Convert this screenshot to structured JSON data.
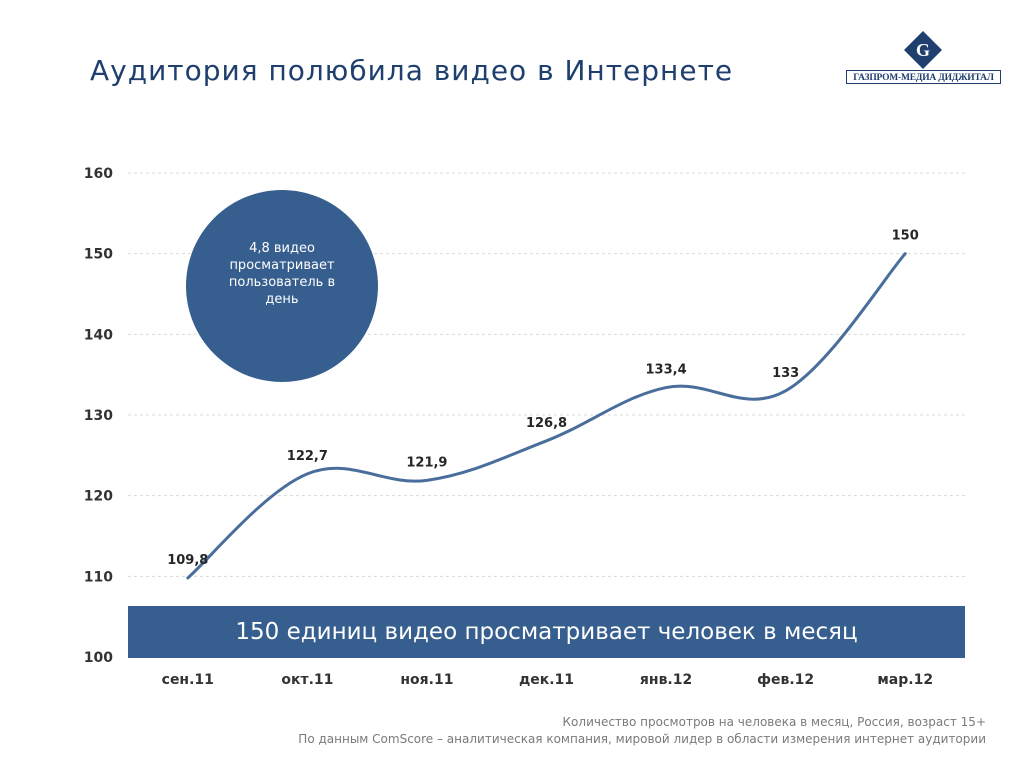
{
  "title": "Аудитория полюбила видео в Интернете",
  "logo": {
    "text": "ГАЗПРОМ-МЕДИА ДИДЖИТАЛ",
    "symbol": "G"
  },
  "bubble_text": "4,8 видео просматривает пользователь в день",
  "banner_text": "150 единиц видео просматривает человек в месяц",
  "footnote": {
    "line1": "Количество просмотров на человека в месяц, Россия, возраст 15+",
    "line2": "По данным ComScore – аналитическая компания, мировой лидер в области измерения интернет аудитории"
  },
  "colors": {
    "line": "#4a6e9c",
    "accent": "#365e8e",
    "title": "#1f3f6e",
    "grid": "#d9d9d9"
  },
  "chart_data": {
    "type": "line",
    "title": "",
    "xlabel": "",
    "ylabel": "",
    "categories": [
      "сен.11",
      "окт.11",
      "ноя.11",
      "дек.11",
      "янв.12",
      "фев.12",
      "мар.12"
    ],
    "values": [
      109.8,
      122.7,
      121.9,
      126.8,
      133.4,
      133,
      150
    ],
    "labels": [
      "109,8",
      "122,7",
      "121,9",
      "126,8",
      "133,4",
      "133",
      "150"
    ],
    "ylim": [
      100,
      160
    ],
    "yticks": [
      100,
      110,
      120,
      130,
      140,
      150,
      160
    ],
    "grid": true,
    "smooth": true
  }
}
